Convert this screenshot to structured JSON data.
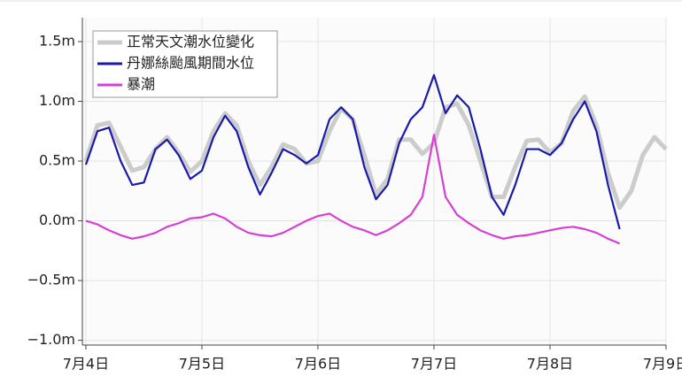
{
  "chart_data": {
    "type": "line",
    "x": [
      0,
      0.1,
      0.2,
      0.3,
      0.4,
      0.5,
      0.6,
      0.7,
      0.8,
      0.9,
      1,
      1.1,
      1.2,
      1.3,
      1.4,
      1.5,
      1.6,
      1.7,
      1.8,
      1.9,
      2,
      2.1,
      2.2,
      2.3,
      2.4,
      2.5,
      2.6,
      2.7,
      2.8,
      2.9,
      3,
      3.1,
      3.2,
      3.3,
      3.4,
      3.5,
      3.6,
      3.7,
      3.8,
      3.9,
      4,
      4.1,
      4.2,
      4.3,
      4.4,
      4.5,
      4.6,
      4.7,
      4.8,
      4.9,
      5
    ],
    "series": [
      {
        "name": "正常天文潮水位變化",
        "color": "#cccccc",
        "values": [
          0.5,
          0.8,
          0.82,
          0.62,
          0.42,
          0.45,
          0.6,
          0.7,
          0.57,
          0.41,
          0.5,
          0.75,
          0.9,
          0.8,
          0.5,
          0.3,
          0.45,
          0.64,
          0.6,
          0.48,
          0.5,
          0.75,
          0.94,
          0.85,
          0.55,
          0.22,
          0.35,
          0.68,
          0.68,
          0.56,
          0.65,
          0.95,
          0.98,
          0.8,
          0.5,
          0.2,
          0.2,
          0.45,
          0.67,
          0.68,
          0.57,
          0.65,
          0.92,
          1.04,
          0.8,
          0.4,
          0.11,
          0.25,
          0.55,
          0.7,
          0.6
        ]
      },
      {
        "name": "丹娜絲颱風期間水位",
        "color": "#1a1aaa",
        "values": [
          0.47,
          0.75,
          0.78,
          0.5,
          0.3,
          0.32,
          0.6,
          0.68,
          0.55,
          0.35,
          0.42,
          0.7,
          0.88,
          0.75,
          0.45,
          0.22,
          0.4,
          0.6,
          0.55,
          0.48,
          0.55,
          0.85,
          0.95,
          0.85,
          0.45,
          0.18,
          0.3,
          0.65,
          0.85,
          0.95,
          1.22,
          0.9,
          1.05,
          0.95,
          0.6,
          0.2,
          0.05,
          0.3,
          0.6,
          0.6,
          0.55,
          0.65,
          0.85,
          1.0,
          0.75,
          0.3,
          -0.07,
          null,
          null,
          null,
          null
        ]
      },
      {
        "name": "暴潮",
        "color": "#d63fd6",
        "values": [
          0.0,
          -0.03,
          -0.08,
          -0.12,
          -0.15,
          -0.13,
          -0.1,
          -0.05,
          -0.02,
          0.02,
          0.03,
          0.06,
          0.02,
          -0.05,
          -0.1,
          -0.12,
          -0.13,
          -0.1,
          -0.05,
          0.0,
          0.04,
          0.06,
          0.0,
          -0.05,
          -0.08,
          -0.12,
          -0.08,
          -0.02,
          0.05,
          0.2,
          0.72,
          0.2,
          0.05,
          -0.02,
          -0.08,
          -0.12,
          -0.15,
          -0.13,
          -0.12,
          -0.1,
          -0.08,
          -0.06,
          -0.05,
          -0.07,
          -0.1,
          -0.15,
          -0.19,
          null,
          null,
          null,
          null
        ]
      }
    ],
    "xlim": [
      -0.03,
      5
    ],
    "xticks": [
      {
        "value": 0,
        "label": "7月4日"
      },
      {
        "value": 1,
        "label": "7月5日"
      },
      {
        "value": 2,
        "label": "7月6日"
      },
      {
        "value": 3,
        "label": "7月7日"
      },
      {
        "value": 4,
        "label": "7月8日"
      },
      {
        "value": 5,
        "label": "7月9日"
      }
    ],
    "ylim": [
      -1.04,
      1.7
    ],
    "yticks": [
      {
        "value": -1.0,
        "label": "−1.0m"
      },
      {
        "value": -0.5,
        "label": "−0.5m"
      },
      {
        "value": 0.0,
        "label": "0.0m"
      },
      {
        "value": 0.5,
        "label": "0.5m"
      },
      {
        "value": 1.0,
        "label": "1.0m"
      },
      {
        "value": 1.5,
        "label": "1.5m"
      }
    ],
    "grid": true,
    "legend": "upper left"
  }
}
